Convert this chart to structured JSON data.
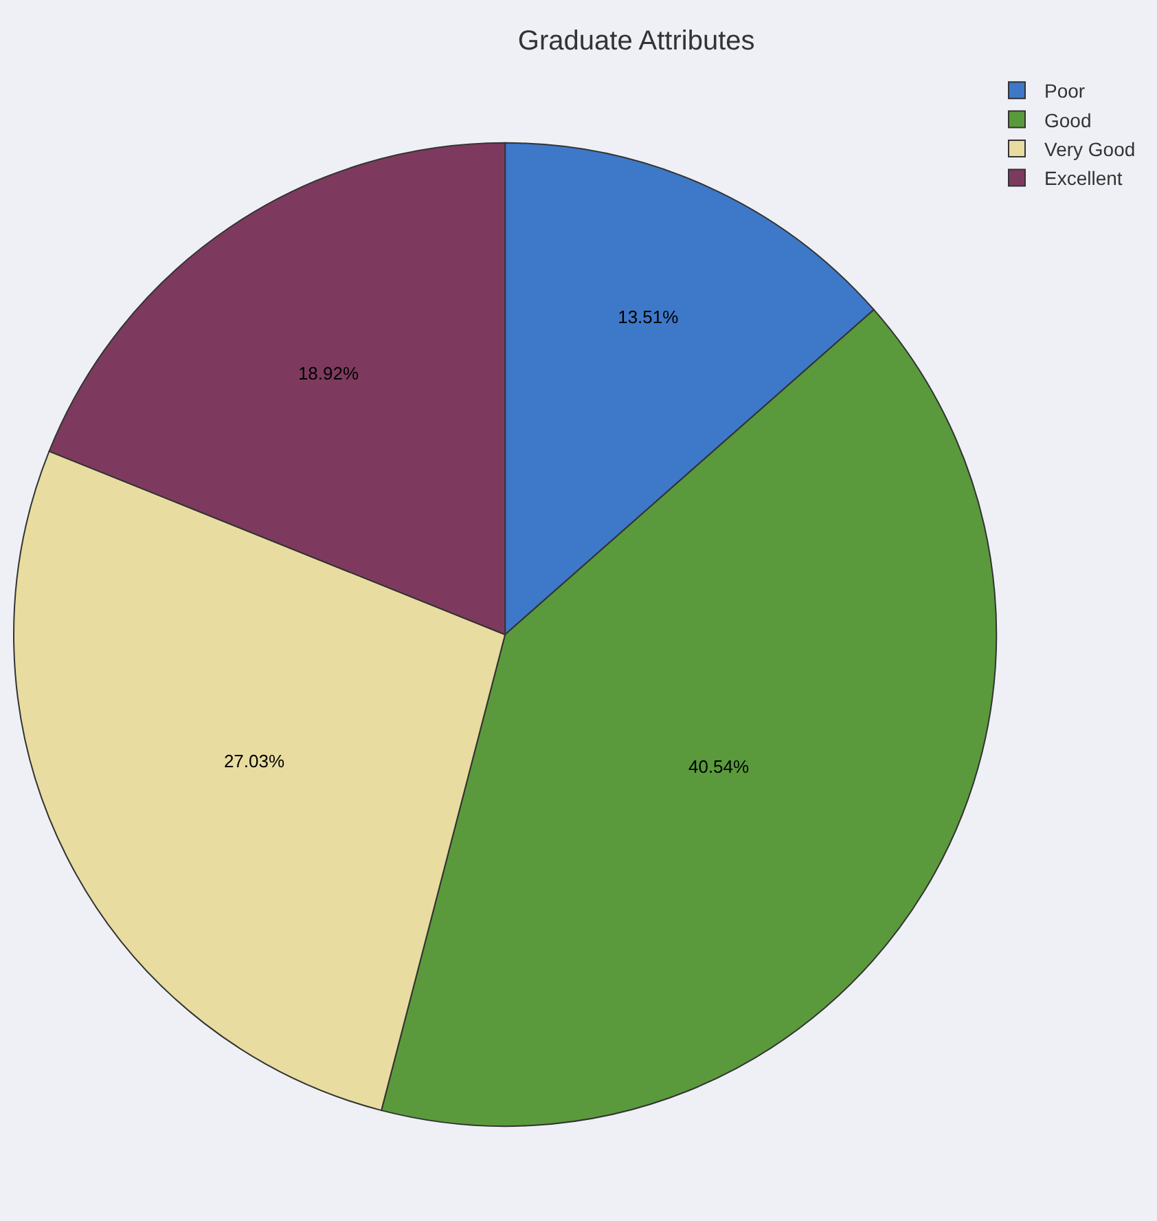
{
  "chart_data": {
    "type": "pie",
    "title": "Graduate Attributes",
    "categories": [
      "Poor",
      "Good",
      "Very Good",
      "Excellent"
    ],
    "values": [
      13.51,
      40.54,
      27.03,
      18.92
    ],
    "value_labels": [
      "13.51%",
      "40.54%",
      "27.03%",
      "18.92%"
    ],
    "colors": [
      "#3e78c8",
      "#5a9a3c",
      "#e8dca0",
      "#7e3a5e"
    ],
    "legend": "top right"
  }
}
